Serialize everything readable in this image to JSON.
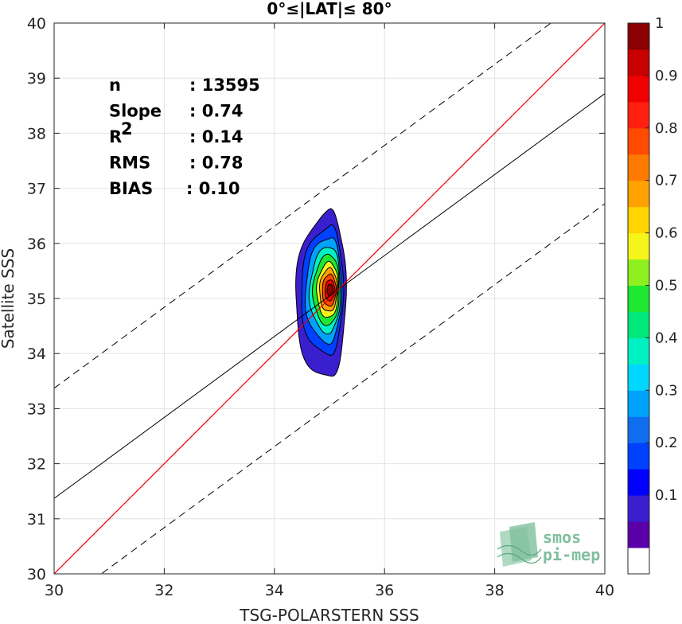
{
  "chart_data": {
    "type": "contour",
    "title": "0°≤|LAT|≤ 80°",
    "xlabel": "TSG-POLARSTERN SSS",
    "ylabel": "Satellite SSS",
    "xlim": [
      30,
      40
    ],
    "ylim": [
      30,
      40
    ],
    "xticks": [
      "30",
      "32",
      "34",
      "36",
      "38",
      "40"
    ],
    "yticks": [
      "30",
      "31",
      "32",
      "33",
      "34",
      "35",
      "36",
      "37",
      "38",
      "39",
      "40"
    ],
    "grid": true,
    "stats": [
      {
        "label": "n",
        "value": ": 13595"
      },
      {
        "label": "Slope",
        "value": ": 0.74"
      },
      {
        "label": "R",
        "sup": "2",
        "value": ": 0.14"
      },
      {
        "label": "RMS",
        "value": ": 0.78"
      },
      {
        "label": "BIAS",
        "value": ": 0.10"
      }
    ],
    "lines": {
      "identity": {
        "from": [
          30,
          30
        ],
        "to": [
          40,
          40
        ],
        "color": "#e8000b"
      },
      "fit": {
        "from": [
          30,
          31.37
        ],
        "to": [
          40,
          38.72
        ],
        "color": "#000000"
      },
      "upper_dashed": {
        "from": [
          30,
          33.37
        ],
        "to": [
          40,
          40.72
        ],
        "color": "#000000"
      },
      "lower_dashed": {
        "from": [
          30,
          29.37
        ],
        "to": [
          40,
          36.72
        ],
        "color": "#000000"
      }
    },
    "density_center": {
      "x": 35.0,
      "y": 35.15
    },
    "density_levels": [
      {
        "level": 0.05,
        "xmin": 34.38,
        "xmax": 35.3,
        "ymin": 33.55,
        "ymax": 36.58
      },
      {
        "level": 0.15,
        "xmin": 34.48,
        "xmax": 35.25,
        "ymin": 33.98,
        "ymax": 36.32
      },
      {
        "level": 0.25,
        "xmin": 34.56,
        "xmax": 35.22,
        "ymin": 34.2,
        "ymax": 36.12
      },
      {
        "level": 0.35,
        "xmin": 34.64,
        "xmax": 35.2,
        "ymin": 34.38,
        "ymax": 35.95
      },
      {
        "level": 0.45,
        "xmin": 34.7,
        "xmax": 35.18,
        "ymin": 34.52,
        "ymax": 35.8
      },
      {
        "level": 0.55,
        "xmin": 34.77,
        "xmax": 35.16,
        "ymin": 34.65,
        "ymax": 35.66
      },
      {
        "level": 0.65,
        "xmin": 34.82,
        "xmax": 35.14,
        "ymin": 34.76,
        "ymax": 35.55
      },
      {
        "level": 0.75,
        "xmin": 34.87,
        "xmax": 35.12,
        "ymin": 34.86,
        "ymax": 35.44
      },
      {
        "level": 0.85,
        "xmin": 34.92,
        "xmax": 35.1,
        "ymin": 34.96,
        "ymax": 35.34
      },
      {
        "level": 0.95,
        "xmin": 34.96,
        "xmax": 35.07,
        "ymin": 35.05,
        "ymax": 35.26
      }
    ],
    "colorbar": {
      "ticks": [
        "0.1",
        "0.2",
        "0.3",
        "0.4",
        "0.5",
        "0.6",
        "0.7",
        "0.8",
        "0.9",
        "1"
      ],
      "colors": [
        "#ffffff",
        "#5a00a8",
        "#3a1fcf",
        "#0000ff",
        "#0040ff",
        "#0f6ef0",
        "#00a2ff",
        "#00d7ff",
        "#00f2c2",
        "#00e87a",
        "#1ee832",
        "#8ef01e",
        "#f5f51a",
        "#ffd400",
        "#ffa200",
        "#ff7a00",
        "#ff4a00",
        "#ff1f0f",
        "#f00000",
        "#c80000",
        "#8b0000"
      ]
    },
    "logo": {
      "line1": "smos",
      "line2": "pi-mep"
    }
  }
}
